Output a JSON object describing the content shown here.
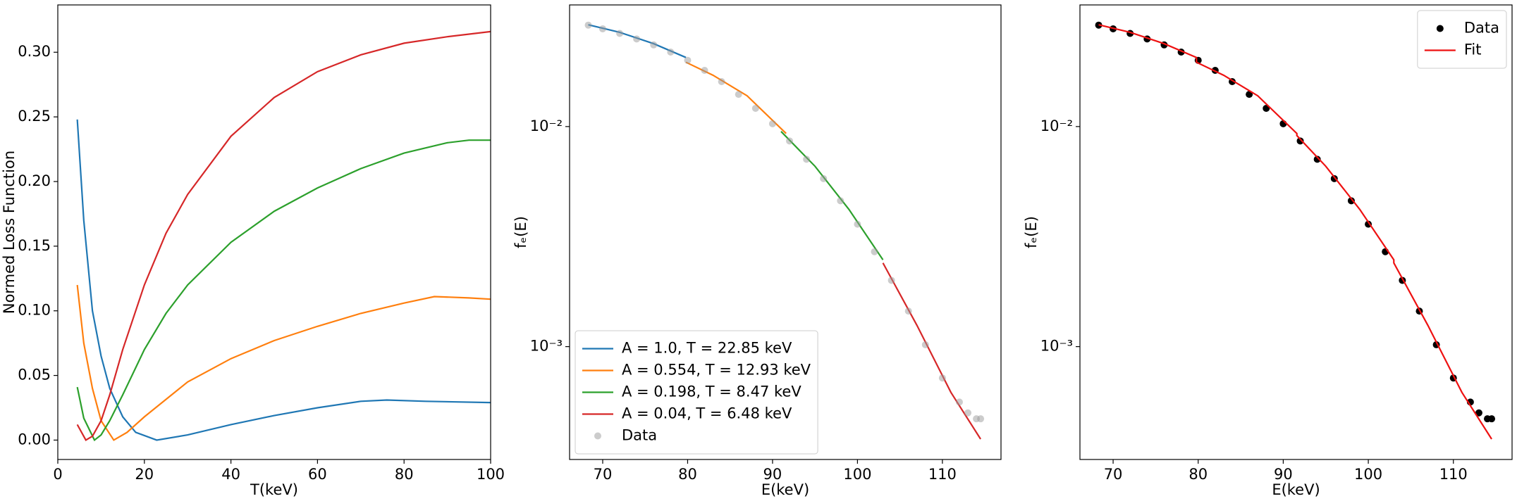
{
  "chart_data": [
    {
      "type": "line",
      "xlabel": "T(keV)",
      "ylabel": "Normed Loss Function",
      "xlim": [
        0,
        100
      ],
      "ylim": [
        -0.015,
        0.3366
      ],
      "xticks": [
        0,
        20,
        40,
        60,
        80,
        100
      ],
      "yticks": [
        {
          "value": 0,
          "label": "0.00"
        },
        {
          "value": 0.05,
          "label": "0.05"
        },
        {
          "value": 0.1,
          "label": "0.10"
        },
        {
          "value": 0.15,
          "label": "0.15"
        },
        {
          "value": 0.2,
          "label": "0.20"
        },
        {
          "value": 0.25,
          "label": "0.25"
        },
        {
          "value": 0.3,
          "label": "0.30"
        }
      ],
      "log_y": false,
      "series": [
        {
          "color": "#1f77b4",
          "x": [
            4.5,
            6,
            8,
            10,
            12,
            15,
            18,
            22.85,
            30,
            40,
            50,
            60,
            70,
            76,
            85,
            100
          ],
          "values": [
            0.248,
            0.17,
            0.1,
            0.065,
            0.04,
            0.018,
            0.006,
            0.0,
            0.004,
            0.012,
            0.019,
            0.025,
            0.03,
            0.031,
            0.03,
            0.029
          ]
        },
        {
          "color": "#ff7f0e",
          "x": [
            4.5,
            6,
            8,
            10,
            12.93,
            16,
            20,
            30,
            40,
            50,
            60,
            70,
            80,
            87,
            95,
            100
          ],
          "values": [
            0.12,
            0.075,
            0.04,
            0.015,
            0.0,
            0.006,
            0.018,
            0.045,
            0.063,
            0.077,
            0.088,
            0.098,
            0.106,
            0.111,
            0.11,
            0.109
          ]
        },
        {
          "color": "#2ca02c",
          "x": [
            4.5,
            6,
            8.47,
            10,
            12,
            15,
            20,
            25,
            30,
            40,
            50,
            60,
            70,
            80,
            90,
            95,
            100
          ],
          "values": [
            0.041,
            0.017,
            0.0,
            0.004,
            0.015,
            0.035,
            0.07,
            0.098,
            0.12,
            0.153,
            0.177,
            0.195,
            0.21,
            0.222,
            0.23,
            0.232,
            0.232
          ]
        },
        {
          "color": "#d62728",
          "x": [
            4.5,
            6.48,
            8,
            10,
            12,
            15,
            20,
            25,
            30,
            40,
            50,
            60,
            70,
            80,
            90,
            100
          ],
          "values": [
            0.012,
            0.0,
            0.003,
            0.015,
            0.035,
            0.07,
            0.12,
            0.16,
            0.19,
            0.235,
            0.265,
            0.285,
            0.298,
            0.307,
            0.312,
            0.316
          ]
        }
      ]
    },
    {
      "type": "line",
      "xlabel": "E(keV)",
      "ylabel": "fₑ(E)",
      "xlim": [
        66.1,
        116.9
      ],
      "ylim": [
        0.000307,
        0.0357
      ],
      "xticks": [
        70,
        80,
        90,
        100,
        110
      ],
      "yticks": [
        {
          "value": 0.01,
          "label": "10⁻²"
        },
        {
          "value": 0.001,
          "label": "10⁻³"
        }
      ],
      "log_y": true,
      "legend": "lower left",
      "series": [
        {
          "name": "A = 1.0, T = 22.85 keV",
          "color": "#1f77b4",
          "x": [
            68.3,
            72,
            76,
            79.8
          ],
          "values": [
            0.029,
            0.0268,
            0.0238,
            0.0206
          ]
        },
        {
          "name": "A = 0.554, T = 12.93 keV",
          "color": "#ff7f0e",
          "x": [
            79.8,
            83,
            87,
            91.6
          ],
          "values": [
            0.0196,
            0.0171,
            0.0138,
            0.0093
          ]
        },
        {
          "name": "A = 0.198, T = 8.47 keV",
          "color": "#2ca02c",
          "x": [
            91,
            95,
            99,
            103
          ],
          "values": [
            0.0095,
            0.0066,
            0.0042,
            0.00248
          ]
        },
        {
          "name": "A = 0.04, T = 6.48 keV",
          "color": "#d62728",
          "x": [
            103,
            107,
            111,
            114.5
          ],
          "values": [
            0.0024,
            0.00125,
            0.00062,
            0.00038
          ]
        },
        {
          "name": "Data",
          "style": "scatter",
          "color": "#999999",
          "alpha": 0.5,
          "x": [
            68.3,
            70,
            72,
            74,
            76,
            78,
            80,
            82,
            84,
            86,
            88,
            90,
            92,
            94,
            96,
            98,
            100,
            102,
            104,
            106,
            108,
            110,
            112,
            113,
            114,
            114.5
          ],
          "values": [
            0.0289,
            0.0278,
            0.0265,
            0.025,
            0.0235,
            0.0218,
            0.02,
            0.018,
            0.016,
            0.014,
            0.0121,
            0.0103,
            0.0086,
            0.0071,
            0.0058,
            0.0046,
            0.0036,
            0.0027,
            0.002,
            0.00145,
            0.00102,
            0.00072,
            0.00056,
            0.0005,
            0.00047,
            0.00047
          ]
        }
      ]
    },
    {
      "type": "line",
      "xlabel": "E(keV)",
      "ylabel": "fₑ(E)",
      "xlim": [
        66.1,
        116.9
      ],
      "ylim": [
        0.000307,
        0.0357
      ],
      "xticks": [
        70,
        80,
        90,
        100,
        110
      ],
      "yticks": [
        {
          "value": 0.01,
          "label": "10⁻²"
        },
        {
          "value": 0.001,
          "label": "10⁻³"
        }
      ],
      "log_y": true,
      "legend": "upper right",
      "series": [
        {
          "name": "Data",
          "style": "scatter",
          "color": "#000000",
          "alpha": 1,
          "x": [
            68.3,
            70,
            72,
            74,
            76,
            78,
            80,
            82,
            84,
            86,
            88,
            90,
            92,
            94,
            96,
            98,
            100,
            102,
            104,
            106,
            108,
            110,
            112,
            113,
            114,
            114.5
          ],
          "values": [
            0.0289,
            0.0278,
            0.0265,
            0.025,
            0.0235,
            0.0218,
            0.02,
            0.018,
            0.016,
            0.014,
            0.0121,
            0.0103,
            0.0086,
            0.0071,
            0.0058,
            0.0046,
            0.0036,
            0.0027,
            0.002,
            0.00145,
            0.00102,
            0.00072,
            0.00056,
            0.0005,
            0.00047,
            0.00047
          ]
        },
        {
          "name": "Fit",
          "color": "#ee1111",
          "x": [
            68.3,
            72,
            76,
            79.8,
            79.8,
            83,
            87,
            91.6,
            91.6,
            95,
            99,
            103,
            103,
            107,
            111,
            114.5
          ],
          "values": [
            0.029,
            0.0268,
            0.0238,
            0.0206,
            0.0196,
            0.0171,
            0.0138,
            0.0093,
            0.0091,
            0.0066,
            0.0042,
            0.00248,
            0.0024,
            0.00125,
            0.00062,
            0.00038
          ]
        }
      ]
    }
  ]
}
